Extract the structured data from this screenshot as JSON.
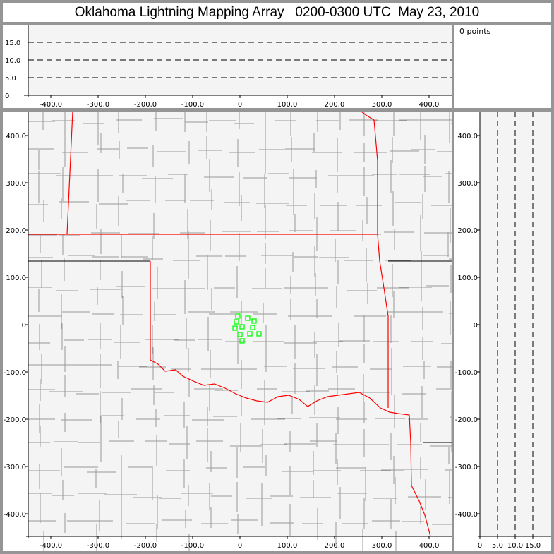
{
  "title": "Oklahoma Lightning Mapping Array   0200-0300 UTC  May 23, 2010",
  "points_label": "0 points",
  "colors": {
    "background": "#f4f4f4",
    "frame": "#959595",
    "state_border": "#ff0000",
    "county_border": "#999999",
    "source_marker": "#00ff00"
  },
  "altitude_panel": {
    "y_ticks": [
      "0",
      "5.0",
      "10.0",
      "15.0"
    ],
    "x_ticks": [
      "-400.0",
      "-300.0",
      "-200.0",
      "-100.0",
      "0",
      "100.0",
      "200.0",
      "300.0",
      "400.0"
    ],
    "grid": "dashed"
  },
  "map_panel": {
    "x_ticks": [
      "-400.0",
      "-300.0",
      "-200.0",
      "-100.0",
      "0",
      "100.0",
      "200.0",
      "300.0",
      "400.0"
    ],
    "y_ticks": [
      "400.0",
      "300.0",
      "200.0",
      "100.0",
      "0",
      "-100.0",
      "-200.0",
      "-300.0",
      "-400.0"
    ],
    "sources_km": [
      [
        -4.5,
        17.9
      ],
      [
        16.4,
        13.4
      ],
      [
        29.9,
        7.5
      ],
      [
        -7.5,
        6.0
      ],
      [
        4.5,
        -4.5
      ],
      [
        -10.4,
        -7.5
      ],
      [
        26.9,
        -6.0
      ],
      [
        0,
        -20.9
      ],
      [
        20.9,
        -19.4
      ],
      [
        40.3,
        -19.4
      ],
      [
        4.5,
        -34.3
      ]
    ]
  },
  "side_panel": {
    "x_ticks": [
      "0",
      "5.0",
      "10.0",
      "15.0"
    ],
    "y_ticks": [
      "400.0",
      "300.0",
      "200.0",
      "100.0",
      "0",
      "-100.0",
      "-200.0",
      "-300.0",
      "-400.0"
    ],
    "grid": "dashed"
  }
}
